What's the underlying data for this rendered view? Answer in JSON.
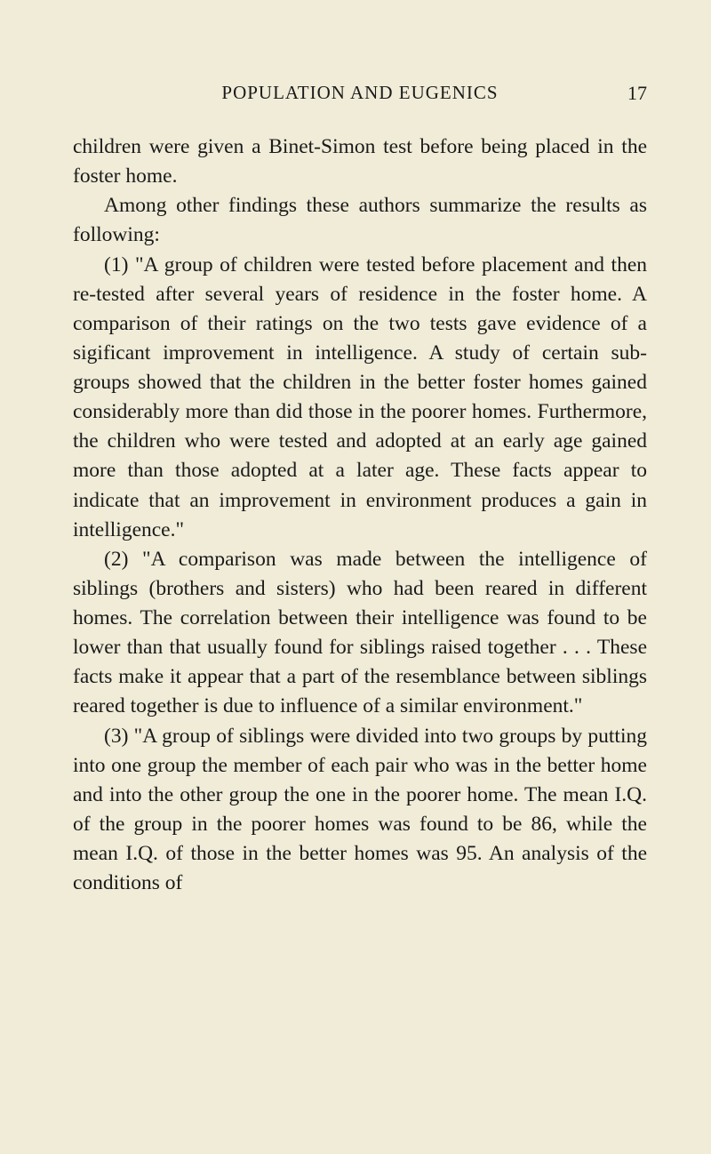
{
  "header": {
    "title": "POPULATION AND EUGENICS",
    "page_number": "17"
  },
  "paragraphs": [
    {
      "text": "children were given a Binet-Simon test before being placed in the foster home.",
      "indent": false
    },
    {
      "text": "Among other findings these authors summarize the results as following:",
      "indent": true
    },
    {
      "text": "(1) \"A group of children were tested before placement and then re-tested after several years of residence in the foster home. A comparison of their ratings on the two tests gave evidence of a sigificant improvement in intelligence. A study of certain sub-groups showed that the children in the better foster homes gained considerably more than did those in the poorer homes. Furthermore, the children who were tested and adopted at an early age gained more than those adopted at a later age. These facts appear to indicate that an improvement in environment produces a gain in intelligence.\"",
      "indent": true
    },
    {
      "text": "(2) \"A comparison was made between the intelligence of siblings (brothers and sisters) who had been reared in different homes. The correlation between their intelligence was found to be lower than that usually found for siblings raised together . . . These facts make it appear that a part of the resemblance between siblings reared together is due to influence of a similar environment.\"",
      "indent": true
    },
    {
      "text": "(3) \"A group of siblings were divided into two groups by putting into one group the member of each pair who was in the better home and into the other group the one in the poorer home. The mean I.Q. of the group in the poorer homes was found to be 86, while the mean I.Q. of those in the better homes was 95. An analysis of the conditions of",
      "indent": true
    }
  ],
  "colors": {
    "background": "#f0ecd8",
    "text": "#1a1a1a"
  }
}
